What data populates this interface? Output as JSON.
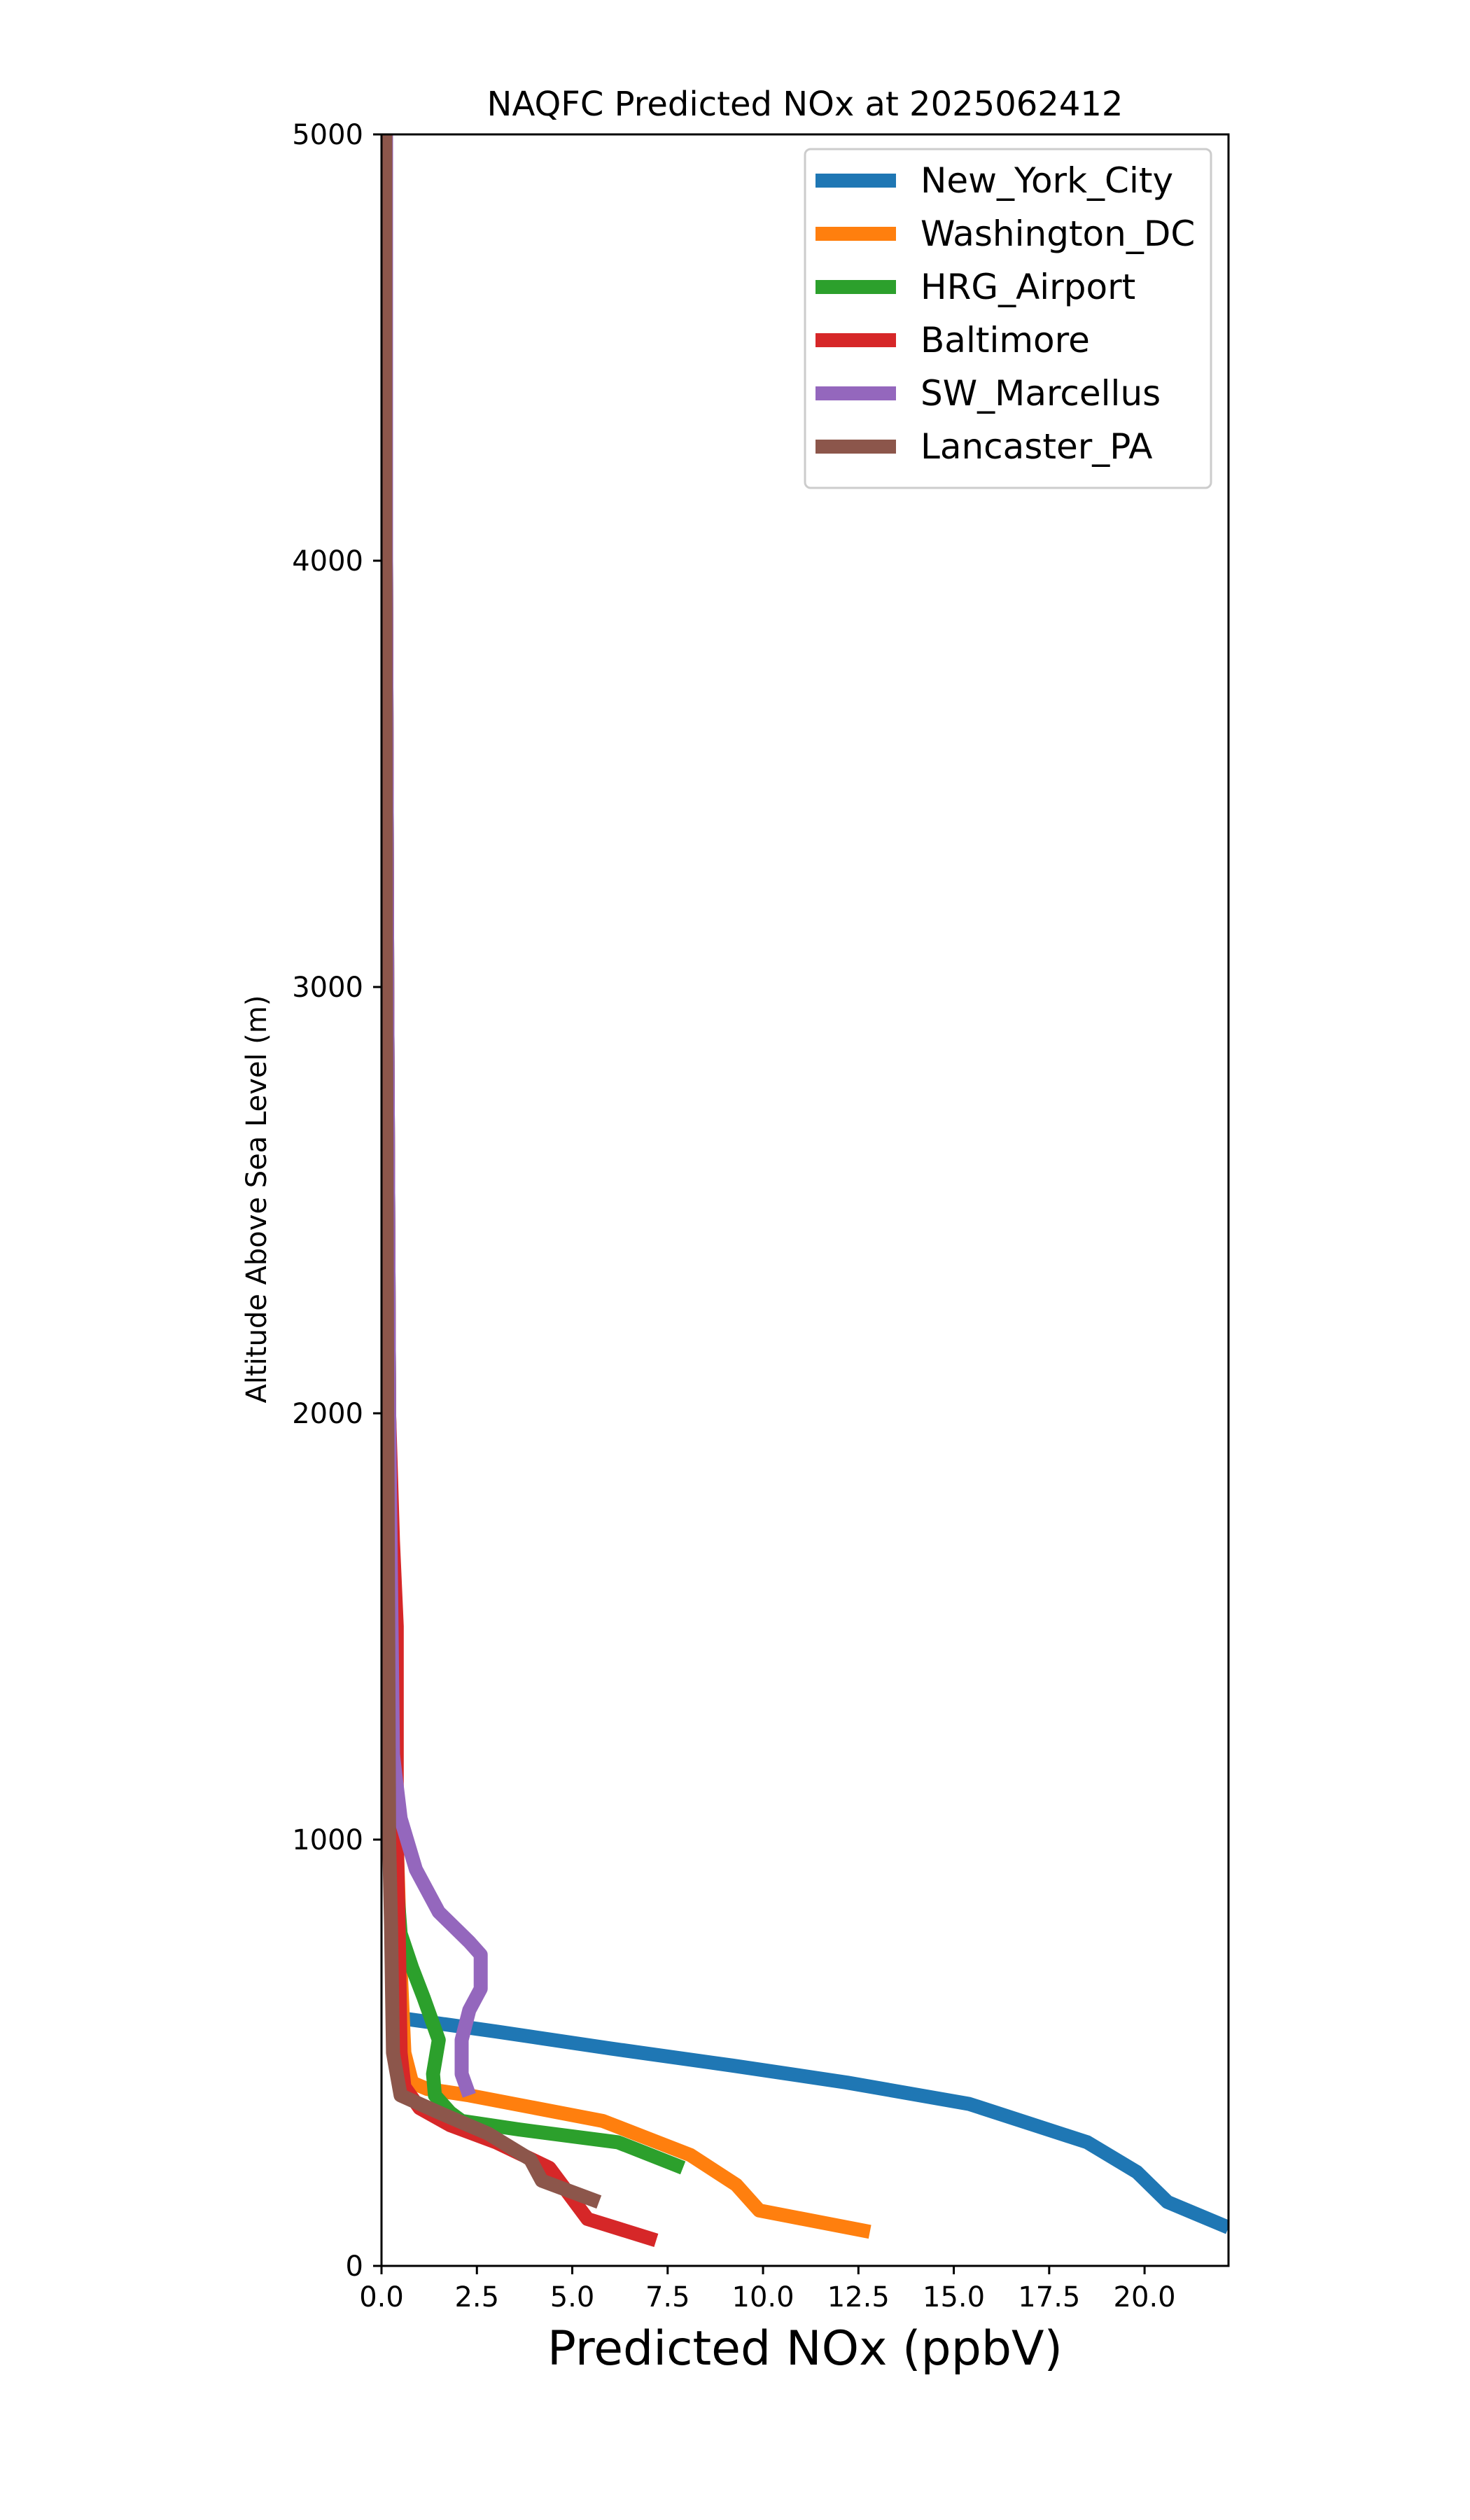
{
  "chart_data": {
    "type": "line",
    "title": "NAQFC Predicted NOx at 2025062412",
    "xlabel": "Predicted NOx (ppbV)",
    "ylabel": "Altitude Above Sea Level (m)",
    "xlim": [
      0,
      22.2
    ],
    "ylim": [
      0,
      5000
    ],
    "x_ticks": [
      0.0,
      2.5,
      5.0,
      7.5,
      10.0,
      12.5,
      15.0,
      17.5,
      20.0
    ],
    "x_tick_labels": [
      "0.0",
      "2.5",
      "5.0",
      "7.5",
      "10.0",
      "12.5",
      "15.0",
      "17.5",
      "20.0"
    ],
    "y_ticks": [
      0,
      1000,
      2000,
      3000,
      4000,
      5000
    ],
    "y_tick_labels": [
      "0",
      "1000",
      "2000",
      "3000",
      "4000",
      "5000"
    ],
    "grid": false,
    "legend_position": "top-right",
    "series": [
      {
        "name": "New_York_City",
        "color": "#1f77b4",
        "points": [
          [
            22.2,
            90
          ],
          [
            20.6,
            150
          ],
          [
            19.8,
            220
          ],
          [
            18.5,
            290
          ],
          [
            15.4,
            380
          ],
          [
            12.2,
            430
          ],
          [
            9.2,
            470
          ],
          [
            6.0,
            510
          ],
          [
            3.0,
            550
          ],
          [
            1.0,
            575
          ],
          [
            0.6,
            580
          ],
          [
            0.5,
            600
          ],
          [
            0.4,
            800
          ],
          [
            0.35,
            1000
          ],
          [
            0.3,
            1500
          ],
          [
            0.2,
            2000
          ],
          [
            0.15,
            3000
          ],
          [
            0.12,
            4000
          ],
          [
            0.12,
            5000
          ]
        ]
      },
      {
        "name": "Washington_DC",
        "color": "#ff7f0e",
        "points": [
          [
            12.8,
            80
          ],
          [
            9.9,
            130
          ],
          [
            9.3,
            190
          ],
          [
            8.1,
            260
          ],
          [
            5.8,
            340
          ],
          [
            2.3,
            400
          ],
          [
            1.2,
            415
          ],
          [
            0.8,
            430
          ],
          [
            0.6,
            500
          ],
          [
            0.5,
            700
          ],
          [
            0.4,
            1000
          ],
          [
            0.3,
            1500
          ],
          [
            0.2,
            2000
          ],
          [
            0.15,
            3000
          ],
          [
            0.12,
            4000
          ],
          [
            0.12,
            5000
          ]
        ]
      },
      {
        "name": "HRG_Airport",
        "color": "#2ca02c",
        "points": [
          [
            7.9,
            230
          ],
          [
            6.2,
            290
          ],
          [
            3.6,
            320
          ],
          [
            2.1,
            340
          ],
          [
            1.8,
            360
          ],
          [
            1.4,
            400
          ],
          [
            1.35,
            450
          ],
          [
            1.5,
            530
          ],
          [
            1.1,
            630
          ],
          [
            0.8,
            700
          ],
          [
            0.5,
            780
          ],
          [
            0.4,
            900
          ],
          [
            0.3,
            1200
          ],
          [
            0.2,
            2000
          ],
          [
            0.15,
            3000
          ],
          [
            0.12,
            4000
          ],
          [
            0.12,
            5000
          ]
        ]
      },
      {
        "name": "Baltimore",
        "color": "#d62728",
        "points": [
          [
            7.2,
            60
          ],
          [
            5.4,
            110
          ],
          [
            4.4,
            230
          ],
          [
            3.0,
            290
          ],
          [
            1.8,
            330
          ],
          [
            1.0,
            370
          ],
          [
            0.6,
            420
          ],
          [
            0.5,
            500
          ],
          [
            0.45,
            800
          ],
          [
            0.4,
            1000
          ],
          [
            0.4,
            1500
          ],
          [
            0.3,
            1700
          ],
          [
            0.2,
            2000
          ],
          [
            0.15,
            3000
          ],
          [
            0.12,
            4000
          ],
          [
            0.12,
            5000
          ]
        ]
      },
      {
        "name": "SW_Marcellus",
        "color": "#9467bd",
        "points": [
          [
            2.3,
            400
          ],
          [
            2.1,
            450
          ],
          [
            2.1,
            530
          ],
          [
            2.3,
            600
          ],
          [
            2.6,
            650
          ],
          [
            2.6,
            730
          ],
          [
            2.3,
            760
          ],
          [
            1.5,
            830
          ],
          [
            0.9,
            930
          ],
          [
            0.5,
            1050
          ],
          [
            0.3,
            1200
          ],
          [
            0.2,
            2000
          ],
          [
            0.15,
            3000
          ],
          [
            0.12,
            4000
          ],
          [
            0.12,
            5000
          ]
        ]
      },
      {
        "name": "Lancaster_PA",
        "color": "#8c564b",
        "points": [
          [
            5.7,
            150
          ],
          [
            4.2,
            200
          ],
          [
            3.9,
            250
          ],
          [
            2.8,
            310
          ],
          [
            1.5,
            360
          ],
          [
            0.5,
            400
          ],
          [
            0.3,
            500
          ],
          [
            0.25,
            800
          ],
          [
            0.2,
            1000
          ],
          [
            0.15,
            2000
          ],
          [
            0.12,
            3000
          ],
          [
            0.1,
            4000
          ],
          [
            0.1,
            5000
          ]
        ]
      }
    ]
  }
}
